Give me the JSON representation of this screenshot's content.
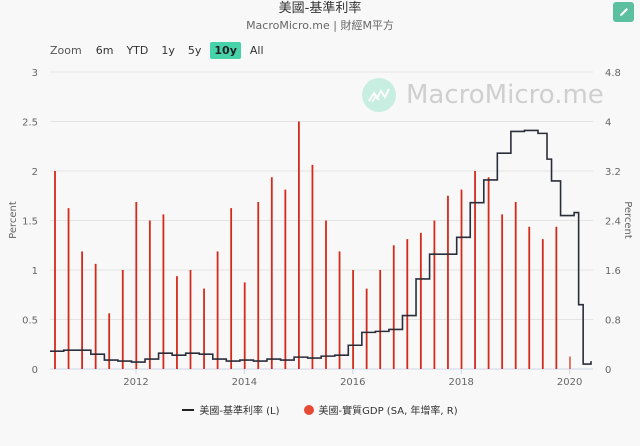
{
  "header": {
    "title": "美國-基準利率",
    "subtitle": "MacroMicro.me | 財經M平方",
    "edit_icon": "pencil-icon"
  },
  "range_selector": {
    "label": "Zoom",
    "buttons": [
      {
        "label": "6m",
        "active": false
      },
      {
        "label": "YTD",
        "active": false
      },
      {
        "label": "1y",
        "active": false
      },
      {
        "label": "5y",
        "active": false
      },
      {
        "label": "10y",
        "active": true
      },
      {
        "label": "All",
        "active": false
      }
    ]
  },
  "watermark": {
    "text": "MacroMicro.me",
    "icon": "macromicro-logo-icon"
  },
  "legend": {
    "items": [
      {
        "label": "美國-基準利率 (L)",
        "symbol": "line",
        "color": "#222222"
      },
      {
        "label": "美國-實質GDP (SA, 年增率, R)",
        "symbol": "dot",
        "color": "#e64a35"
      }
    ]
  },
  "colors": {
    "rate_line": "#2b2d3a",
    "gdp_bars": "#d42a1a",
    "grid": "#e3e3e3",
    "accent": "#46d3aa"
  },
  "chart_data": {
    "type": "line+bar",
    "title": "美國-基準利率",
    "subtitle": "MacroMicro.me | 財經M平方",
    "xlabel": "",
    "x_ticks": [
      "2012",
      "2014",
      "2016",
      "2018",
      "2020"
    ],
    "left_axis": {
      "label": "Percent",
      "ticks": [
        "0",
        "0.5",
        "1",
        "1.5",
        "2",
        "2.5",
        "3"
      ],
      "range": [
        0,
        3
      ]
    },
    "right_axis": {
      "label": "Percent",
      "ticks": [
        "0",
        "0.8",
        "1.6",
        "2.4",
        "3.2",
        "4",
        "4.8"
      ],
      "range": [
        0,
        4.8
      ]
    },
    "grid": true,
    "legend_position": "bottom",
    "series": [
      {
        "name": "美國-基準利率 (L)",
        "type": "line",
        "axis": "left",
        "x": [
          "2010-06",
          "2010-09",
          "2010-12",
          "2011-03",
          "2011-06",
          "2011-09",
          "2011-12",
          "2012-03",
          "2012-06",
          "2012-09",
          "2012-12",
          "2013-03",
          "2013-06",
          "2013-09",
          "2013-12",
          "2014-03",
          "2014-06",
          "2014-09",
          "2014-12",
          "2015-03",
          "2015-06",
          "2015-09",
          "2015-12",
          "2016-03",
          "2016-06",
          "2016-09",
          "2016-12",
          "2017-03",
          "2017-06",
          "2017-09",
          "2017-12",
          "2018-03",
          "2018-06",
          "2018-09",
          "2018-12",
          "2019-03",
          "2019-06",
          "2019-08",
          "2019-09",
          "2019-11",
          "2019-12",
          "2020-02",
          "2020-03",
          "2020-04",
          "2020-06"
        ],
        "values": [
          0.18,
          0.19,
          0.19,
          0.15,
          0.09,
          0.08,
          0.07,
          0.1,
          0.16,
          0.14,
          0.16,
          0.15,
          0.1,
          0.08,
          0.09,
          0.08,
          0.1,
          0.09,
          0.12,
          0.11,
          0.13,
          0.14,
          0.24,
          0.37,
          0.38,
          0.4,
          0.54,
          0.91,
          1.16,
          1.16,
          1.33,
          1.68,
          1.91,
          2.18,
          2.4,
          2.41,
          2.38,
          2.12,
          1.9,
          1.55,
          1.55,
          1.58,
          0.65,
          0.05,
          0.08
        ]
      },
      {
        "name": "美國-實質GDP (SA, 年增率, R)",
        "type": "bar",
        "axis": "right",
        "x": [
          "2010Q2",
          "2010Q3",
          "2010Q4",
          "2011Q1",
          "2011Q2",
          "2011Q3",
          "2011Q4",
          "2012Q1",
          "2012Q2",
          "2012Q3",
          "2012Q4",
          "2013Q1",
          "2013Q2",
          "2013Q3",
          "2013Q4",
          "2014Q1",
          "2014Q2",
          "2014Q3",
          "2014Q4",
          "2015Q1",
          "2015Q2",
          "2015Q3",
          "2015Q4",
          "2016Q1",
          "2016Q2",
          "2016Q3",
          "2016Q4",
          "2017Q1",
          "2017Q2",
          "2017Q3",
          "2017Q4",
          "2018Q1",
          "2018Q2",
          "2018Q3",
          "2018Q4",
          "2019Q1",
          "2019Q2",
          "2019Q3",
          "2019Q4",
          "2020Q1"
        ],
        "values": [
          3.2,
          2.6,
          1.9,
          1.7,
          0.9,
          1.6,
          2.7,
          2.4,
          2.5,
          1.5,
          1.6,
          1.3,
          1.9,
          2.6,
          1.4,
          2.7,
          3.1,
          2.9,
          4.0,
          3.3,
          2.4,
          1.9,
          1.6,
          1.3,
          1.6,
          2.0,
          2.1,
          2.2,
          2.4,
          2.8,
          2.9,
          3.2,
          3.1,
          2.5,
          2.7,
          2.3,
          2.1,
          2.3,
          0.2,
          0.2
        ]
      }
    ]
  }
}
